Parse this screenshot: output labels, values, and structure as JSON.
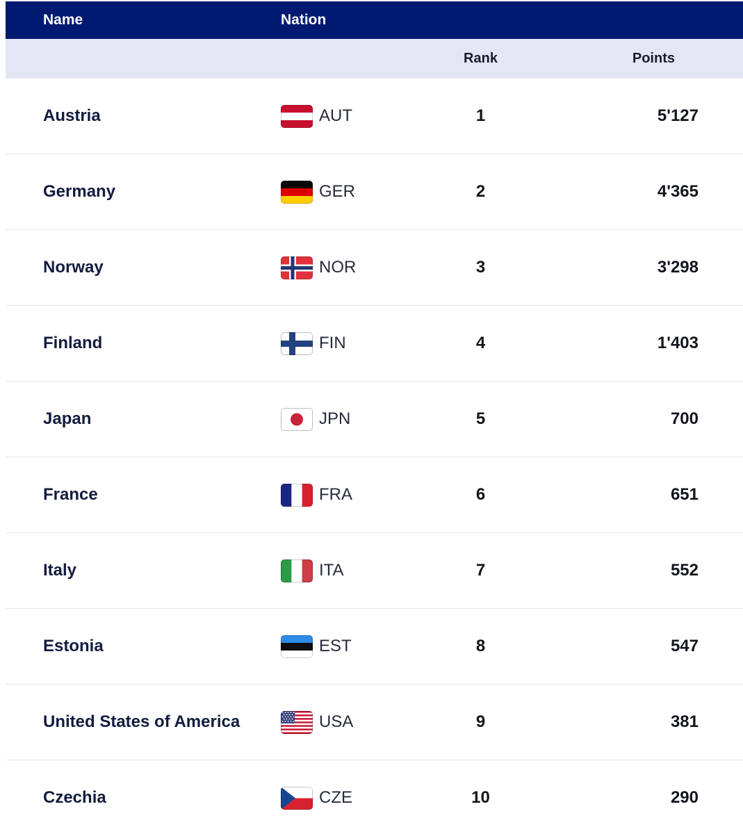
{
  "table": {
    "header": {
      "name_label": "Name",
      "nation_label": "Nation"
    },
    "subheader": {
      "rank_label": "Rank",
      "points_label": "Points"
    },
    "rows": [
      {
        "name": "Austria",
        "code": "AUT",
        "flag_icon": "flag-aut-icon",
        "rank": "1",
        "points": "5'127"
      },
      {
        "name": "Germany",
        "code": "GER",
        "flag_icon": "flag-ger-icon",
        "rank": "2",
        "points": "4'365"
      },
      {
        "name": "Norway",
        "code": "NOR",
        "flag_icon": "flag-nor-icon",
        "rank": "3",
        "points": "3'298"
      },
      {
        "name": "Finland",
        "code": "FIN",
        "flag_icon": "flag-fin-icon",
        "rank": "4",
        "points": "1'403"
      },
      {
        "name": "Japan",
        "code": "JPN",
        "flag_icon": "flag-jpn-icon",
        "rank": "5",
        "points": "700"
      },
      {
        "name": "France",
        "code": "FRA",
        "flag_icon": "flag-fra-icon",
        "rank": "6",
        "points": "651"
      },
      {
        "name": "Italy",
        "code": "ITA",
        "flag_icon": "flag-ita-icon",
        "rank": "7",
        "points": "552"
      },
      {
        "name": "Estonia",
        "code": "EST",
        "flag_icon": "flag-est-icon",
        "rank": "8",
        "points": "547"
      },
      {
        "name": "United States of America",
        "code": "USA",
        "flag_icon": "flag-usa-icon",
        "rank": "9",
        "points": "381"
      },
      {
        "name": "Czechia",
        "code": "CZE",
        "flag_icon": "flag-cze-icon",
        "rank": "10",
        "points": "290"
      }
    ]
  },
  "colors": {
    "header_bg": "#001A72",
    "header_text": "#FFFFFF",
    "subheader_bg": "#E3E7F3",
    "subheader_text": "#191B2C",
    "row_bg": "#FFFFFF",
    "row_divider": "#E8E8E8",
    "name_text": "#131B3E",
    "code_text": "#272C3A",
    "number_text": "#13151C"
  }
}
